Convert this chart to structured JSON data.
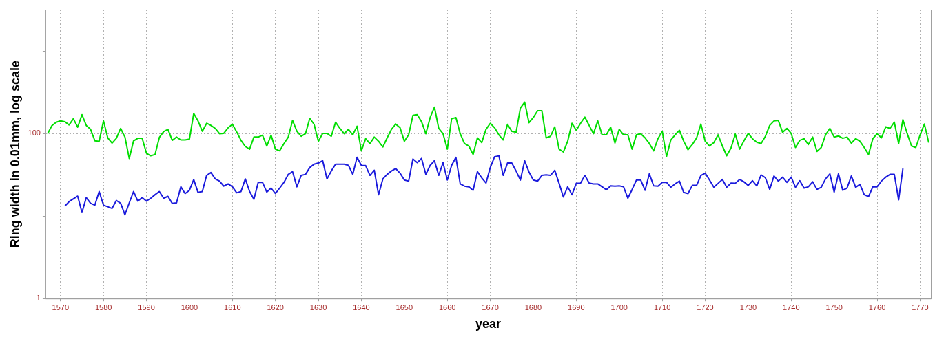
{
  "chart_data": {
    "type": "line",
    "xlabel": "year",
    "ylabel": "Ring width in 0.01mm, log scale",
    "log": true,
    "grid": true,
    "marker": "none",
    "line_style": "solid",
    "xlim": [
      1566.5,
      1772.5
    ],
    "xticks": [
      1570,
      1580,
      1590,
      1600,
      1610,
      1620,
      1630,
      1640,
      1650,
      1660,
      1670,
      1680,
      1690,
      1700,
      1710,
      1720,
      1730,
      1740,
      1750,
      1760,
      1770
    ],
    "ylim": [
      1,
      3200
    ],
    "yticks": [
      1,
      {
        "value": 10,
        "label": null
      },
      100,
      {
        "value": 1000,
        "label": null
      }
    ],
    "x": [
      1567,
      1568,
      1569,
      1570,
      1571,
      1572,
      1573,
      1574,
      1575,
      1576,
      1577,
      1578,
      1579,
      1580,
      1581,
      1582,
      1583,
      1584,
      1585,
      1586,
      1587,
      1588,
      1589,
      1590,
      1591,
      1592,
      1593,
      1594,
      1595,
      1596,
      1597,
      1598,
      1599,
      1600,
      1601,
      1602,
      1603,
      1604,
      1605,
      1606,
      1607,
      1608,
      1609,
      1610,
      1611,
      1612,
      1613,
      1614,
      1615,
      1616,
      1617,
      1618,
      1619,
      1620,
      1621,
      1622,
      1623,
      1624,
      1625,
      1626,
      1627,
      1628,
      1629,
      1630,
      1631,
      1632,
      1633,
      1634,
      1635,
      1636,
      1637,
      1638,
      1639,
      1640,
      1641,
      1642,
      1643,
      1644,
      1645,
      1646,
      1647,
      1648,
      1649,
      1650,
      1651,
      1652,
      1653,
      1654,
      1655,
      1656,
      1657,
      1658,
      1659,
      1660,
      1661,
      1662,
      1663,
      1664,
      1665,
      1666,
      1667,
      1668,
      1669,
      1670,
      1671,
      1672,
      1673,
      1674,
      1675,
      1676,
      1677,
      1678,
      1679,
      1680,
      1681,
      1682,
      1683,
      1684,
      1685,
      1686,
      1687,
      1688,
      1689,
      1690,
      1691,
      1692,
      1693,
      1694,
      1695,
      1696,
      1697,
      1698,
      1699,
      1700,
      1701,
      1702,
      1703,
      1704,
      1705,
      1706,
      1707,
      1708,
      1709,
      1710,
      1711,
      1712,
      1713,
      1714,
      1715,
      1716,
      1717,
      1718,
      1719,
      1720,
      1721,
      1722,
      1723,
      1724,
      1725,
      1726,
      1727,
      1728,
      1729,
      1730,
      1731,
      1732,
      1733,
      1734,
      1735,
      1736,
      1737,
      1738,
      1739,
      1740,
      1741,
      1742,
      1743,
      1744,
      1745,
      1746,
      1747,
      1748,
      1749,
      1750,
      1751,
      1752,
      1753,
      1754,
      1755,
      1756,
      1757,
      1758,
      1759,
      1760,
      1761,
      1762,
      1763,
      1764,
      1765,
      1766,
      1767,
      1768,
      1769,
      1770,
      1771,
      1772
    ],
    "series": [
      {
        "color": "#00dd00",
        "values": [
          100,
          125,
          138,
          143,
          140,
          128,
          152,
          120,
          170,
          126,
          113,
          82,
          81,
          143,
          89,
          77,
          88,
          116,
          91,
          50,
          82,
          88,
          88,
          58,
          54,
          56,
          90,
          106,
          113,
          83,
          91,
          84,
          84,
          86,
          176,
          143,
          107,
          134,
          126,
          116,
          100,
          101,
          118,
          130,
          105,
          83,
          70,
          65,
          91,
          91,
          96,
          71,
          96,
          65,
          62,
          76,
          91,
          145,
          107,
          93,
          100,
          154,
          130,
          81,
          101,
          101,
          93,
          138,
          116,
          100,
          113,
          97,
          123,
          62,
          87,
          76,
          91,
          81,
          69,
          89,
          113,
          131,
          118,
          81,
          97,
          167,
          170,
          140,
          100,
          157,
          210,
          116,
          100,
          65,
          152,
          157,
          100,
          76,
          71,
          56,
          89,
          78,
          113,
          134,
          118,
          97,
          84,
          130,
          107,
          104,
          205,
          241,
          136,
          157,
          190,
          190,
          89,
          93,
          121,
          65,
          60,
          81,
          134,
          110,
          134,
          159,
          126,
          100,
          143,
          97,
          97,
          120,
          77,
          113,
          97,
          97,
          65,
          97,
          100,
          89,
          76,
          62,
          87,
          107,
          53,
          84,
          97,
          110,
          81,
          64,
          74,
          89,
          131,
          81,
          71,
          78,
          97,
          71,
          54,
          67,
          99,
          65,
          82,
          101,
          87,
          79,
          76,
          93,
          126,
          143,
          145,
          104,
          116,
          101,
          68,
          83,
          87,
          74,
          91,
          61,
          68,
          97,
          116,
          91,
          94,
          88,
          91,
          77,
          87,
          81,
          68,
          56,
          87,
          100,
          89,
          121,
          116,
          138,
          76,
          148,
          100,
          71,
          68,
          97,
          131,
          78
        ]
      },
      {
        "color": "#1a1adc",
        "values": [
          null,
          null,
          null,
          null,
          13.2,
          15.0,
          16.2,
          17.5,
          11.1,
          16.8,
          14.3,
          13.6,
          19.9,
          13.6,
          13.0,
          12.4,
          15.5,
          14.3,
          10.4,
          14.5,
          19.9,
          15.2,
          16.8,
          15.2,
          16.5,
          18.2,
          19.9,
          16.5,
          17.4,
          14.3,
          14.5,
          22.7,
          18.8,
          20.6,
          27.8,
          19.4,
          19.9,
          31.2,
          33.8,
          28.3,
          26.6,
          23.1,
          24.6,
          22.7,
          19.2,
          19.9,
          28.3,
          19.9,
          16.0,
          25.7,
          25.7,
          19.6,
          21.9,
          18.8,
          21.9,
          25.7,
          32.1,
          34.6,
          22.7,
          31.2,
          32.1,
          38.9,
          42.7,
          44.1,
          47,
          28.3,
          35.3,
          42.7,
          42.7,
          42.7,
          41.3,
          32.1,
          51.7,
          41.3,
          41,
          31.2,
          36,
          18.2,
          28.3,
          32.1,
          35.3,
          37.7,
          33.2,
          27.4,
          26.6,
          49.4,
          44.6,
          50.1,
          32.1,
          41.3,
          47,
          31.2,
          44.6,
          27.4,
          41.3,
          51.7,
          24.6,
          23.1,
          22.7,
          20.6,
          34.6,
          29.2,
          25.2,
          38.9,
          52.6,
          53.9,
          31.2,
          44.1,
          44.1,
          35.3,
          27.4,
          47,
          34.3,
          27.4,
          26.6,
          31.2,
          31.7,
          31.2,
          36,
          25,
          17.1,
          22.7,
          18.2,
          25,
          25.2,
          31.2,
          25.2,
          24.6,
          24.6,
          22.7,
          20.9,
          23.3,
          23.1,
          23.3,
          22.7,
          16.5,
          21.1,
          27.4,
          27.4,
          20.6,
          32.6,
          23.3,
          23.1,
          25.7,
          25.7,
          22.4,
          24.6,
          26.6,
          19.4,
          18.8,
          23.6,
          23.6,
          31.2,
          33.2,
          27.4,
          22.4,
          25,
          27.9,
          22.4,
          25.2,
          25,
          27.9,
          26.1,
          23.6,
          26.9,
          23.3,
          31.7,
          29.2,
          21.1,
          30.7,
          26.6,
          29.7,
          25.7,
          29.7,
          22.4,
          26.9,
          21.9,
          22.7,
          26.1,
          21.1,
          22.4,
          28.3,
          32.6,
          19.6,
          32.6,
          20.6,
          21.9,
          30.7,
          22.4,
          24.3,
          18.2,
          17.3,
          22.7,
          22.7,
          26.6,
          29.7,
          32.1,
          32.1,
          15.8,
          37.7,
          null,
          null,
          null,
          null,
          null,
          null
        ]
      }
    ]
  }
}
